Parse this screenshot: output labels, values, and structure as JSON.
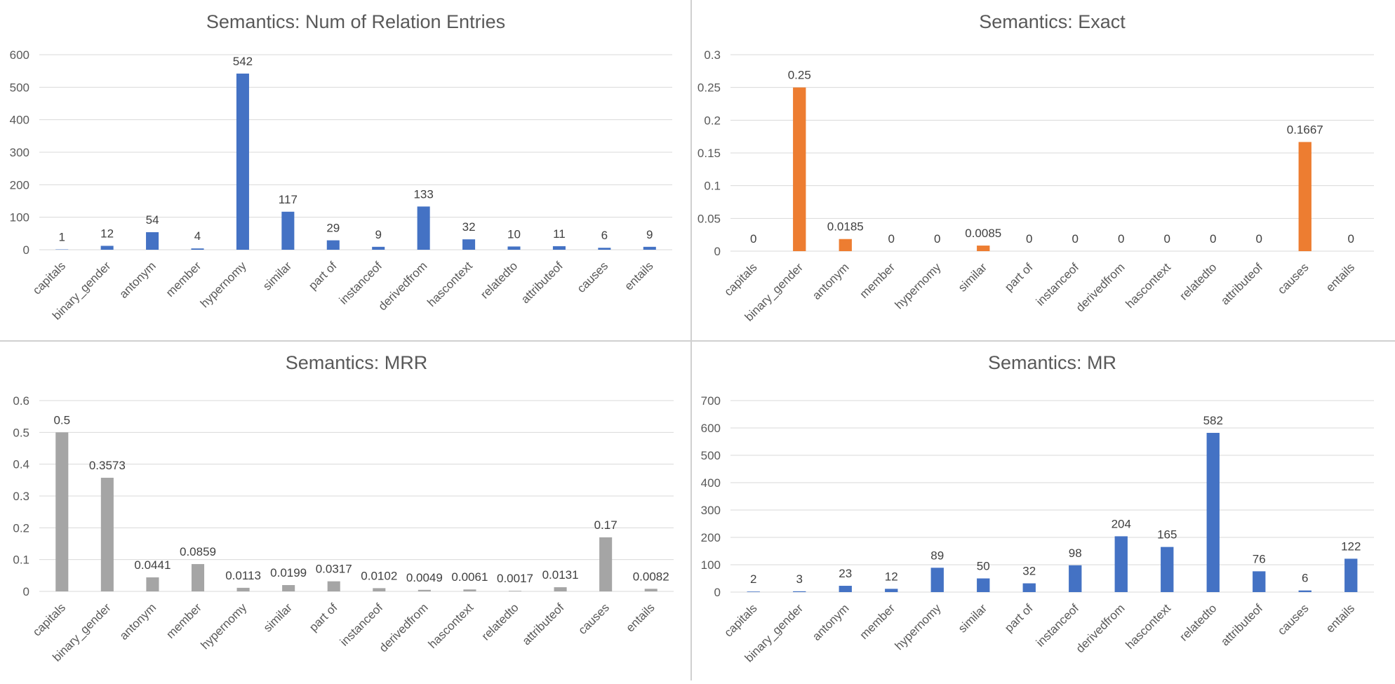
{
  "colors": {
    "blue": "#4472c4",
    "orange": "#ed7d31",
    "gray": "#a5a5a5"
  },
  "chart_data": [
    {
      "id": "num-entries",
      "type": "bar",
      "title": "Semantics: Num of Relation Entries",
      "categories": [
        "capitals",
        "binary_gender",
        "antonym",
        "member",
        "hypernomy",
        "similar",
        "part of",
        "instanceof",
        "derivedfrom",
        "hascontext",
        "relatedto",
        "attributeof",
        "causes",
        "entails"
      ],
      "values": [
        1,
        12,
        54,
        4,
        542,
        117,
        29,
        9,
        133,
        32,
        10,
        11,
        6,
        9
      ],
      "labels": [
        "1",
        "12",
        "54",
        "4",
        "542",
        "117",
        "29",
        "9",
        "133",
        "32",
        "10",
        "11",
        "6",
        "9"
      ],
      "ylim": [
        0,
        600
      ],
      "yticks": [
        "0",
        "100",
        "200",
        "300",
        "400",
        "500",
        "600"
      ],
      "color": "#4472c4",
      "grid": true,
      "legend": "none"
    },
    {
      "id": "exact",
      "type": "bar",
      "title": "Semantics: Exact",
      "categories": [
        "capitals",
        "binary_gender",
        "antonym",
        "member",
        "hypernomy",
        "similar",
        "part of",
        "instanceof",
        "derivedfrom",
        "hascontext",
        "relatedto",
        "attributeof",
        "causes",
        "entails"
      ],
      "values": [
        0,
        0.25,
        0.0185,
        0,
        0,
        0.0085,
        0,
        0,
        0,
        0,
        0,
        0,
        0.1667,
        0
      ],
      "labels": [
        "0",
        "0.25",
        "0.0185",
        "0",
        "0",
        "0.0085",
        "0",
        "0",
        "0",
        "0",
        "0",
        "0",
        "0.1667",
        "0"
      ],
      "ylim": [
        0,
        0.3
      ],
      "yticks": [
        "0",
        "0.05",
        "0.1",
        "0.15",
        "0.2",
        "0.25",
        "0.3"
      ],
      "color": "#ed7d31",
      "grid": true,
      "legend": "none"
    },
    {
      "id": "mrr",
      "type": "bar",
      "title": "Semantics: MRR",
      "categories": [
        "capitals",
        "binary_gender",
        "antonym",
        "member",
        "hypernomy",
        "similar",
        "part of",
        "instanceof",
        "derivedfrom",
        "hascontext",
        "relatedto",
        "attributeof",
        "causes",
        "entails"
      ],
      "values": [
        0.5,
        0.3573,
        0.0441,
        0.0859,
        0.0113,
        0.0199,
        0.0317,
        0.0102,
        0.0049,
        0.0061,
        0.0017,
        0.0131,
        0.17,
        0.0082
      ],
      "labels": [
        "0.5",
        "0.3573",
        "0.0441",
        "0.0859",
        "0.0113",
        "0.0199",
        "0.0317",
        "0.0102",
        "0.0049",
        "0.0061",
        "0.0017",
        "0.0131",
        "0.17",
        "0.0082"
      ],
      "ylim": [
        0,
        0.6
      ],
      "yticks": [
        "0",
        "0.1",
        "0.2",
        "0.3",
        "0.4",
        "0.5",
        "0.6"
      ],
      "color": "#a5a5a5",
      "grid": true,
      "legend": "none"
    },
    {
      "id": "mr",
      "type": "bar",
      "title": "Semantics: MR",
      "categories": [
        "capitals",
        "binary_gender",
        "antonym",
        "member",
        "hypernomy",
        "similar",
        "part of",
        "instanceof",
        "derivedfrom",
        "hascontext",
        "relatedto",
        "attributeof",
        "causes",
        "entails"
      ],
      "values": [
        2,
        3,
        23,
        12,
        89,
        50,
        32,
        98,
        204,
        165,
        582,
        76,
        6,
        122
      ],
      "labels": [
        "2",
        "3",
        "23",
        "12",
        "89",
        "50",
        "32",
        "98",
        "204",
        "165",
        "582",
        "76",
        "6",
        "122"
      ],
      "ylim": [
        0,
        700
      ],
      "yticks": [
        "0",
        "100",
        "200",
        "300",
        "400",
        "500",
        "600",
        "700"
      ],
      "color": "#4472c4",
      "grid": true,
      "legend": "none"
    }
  ]
}
